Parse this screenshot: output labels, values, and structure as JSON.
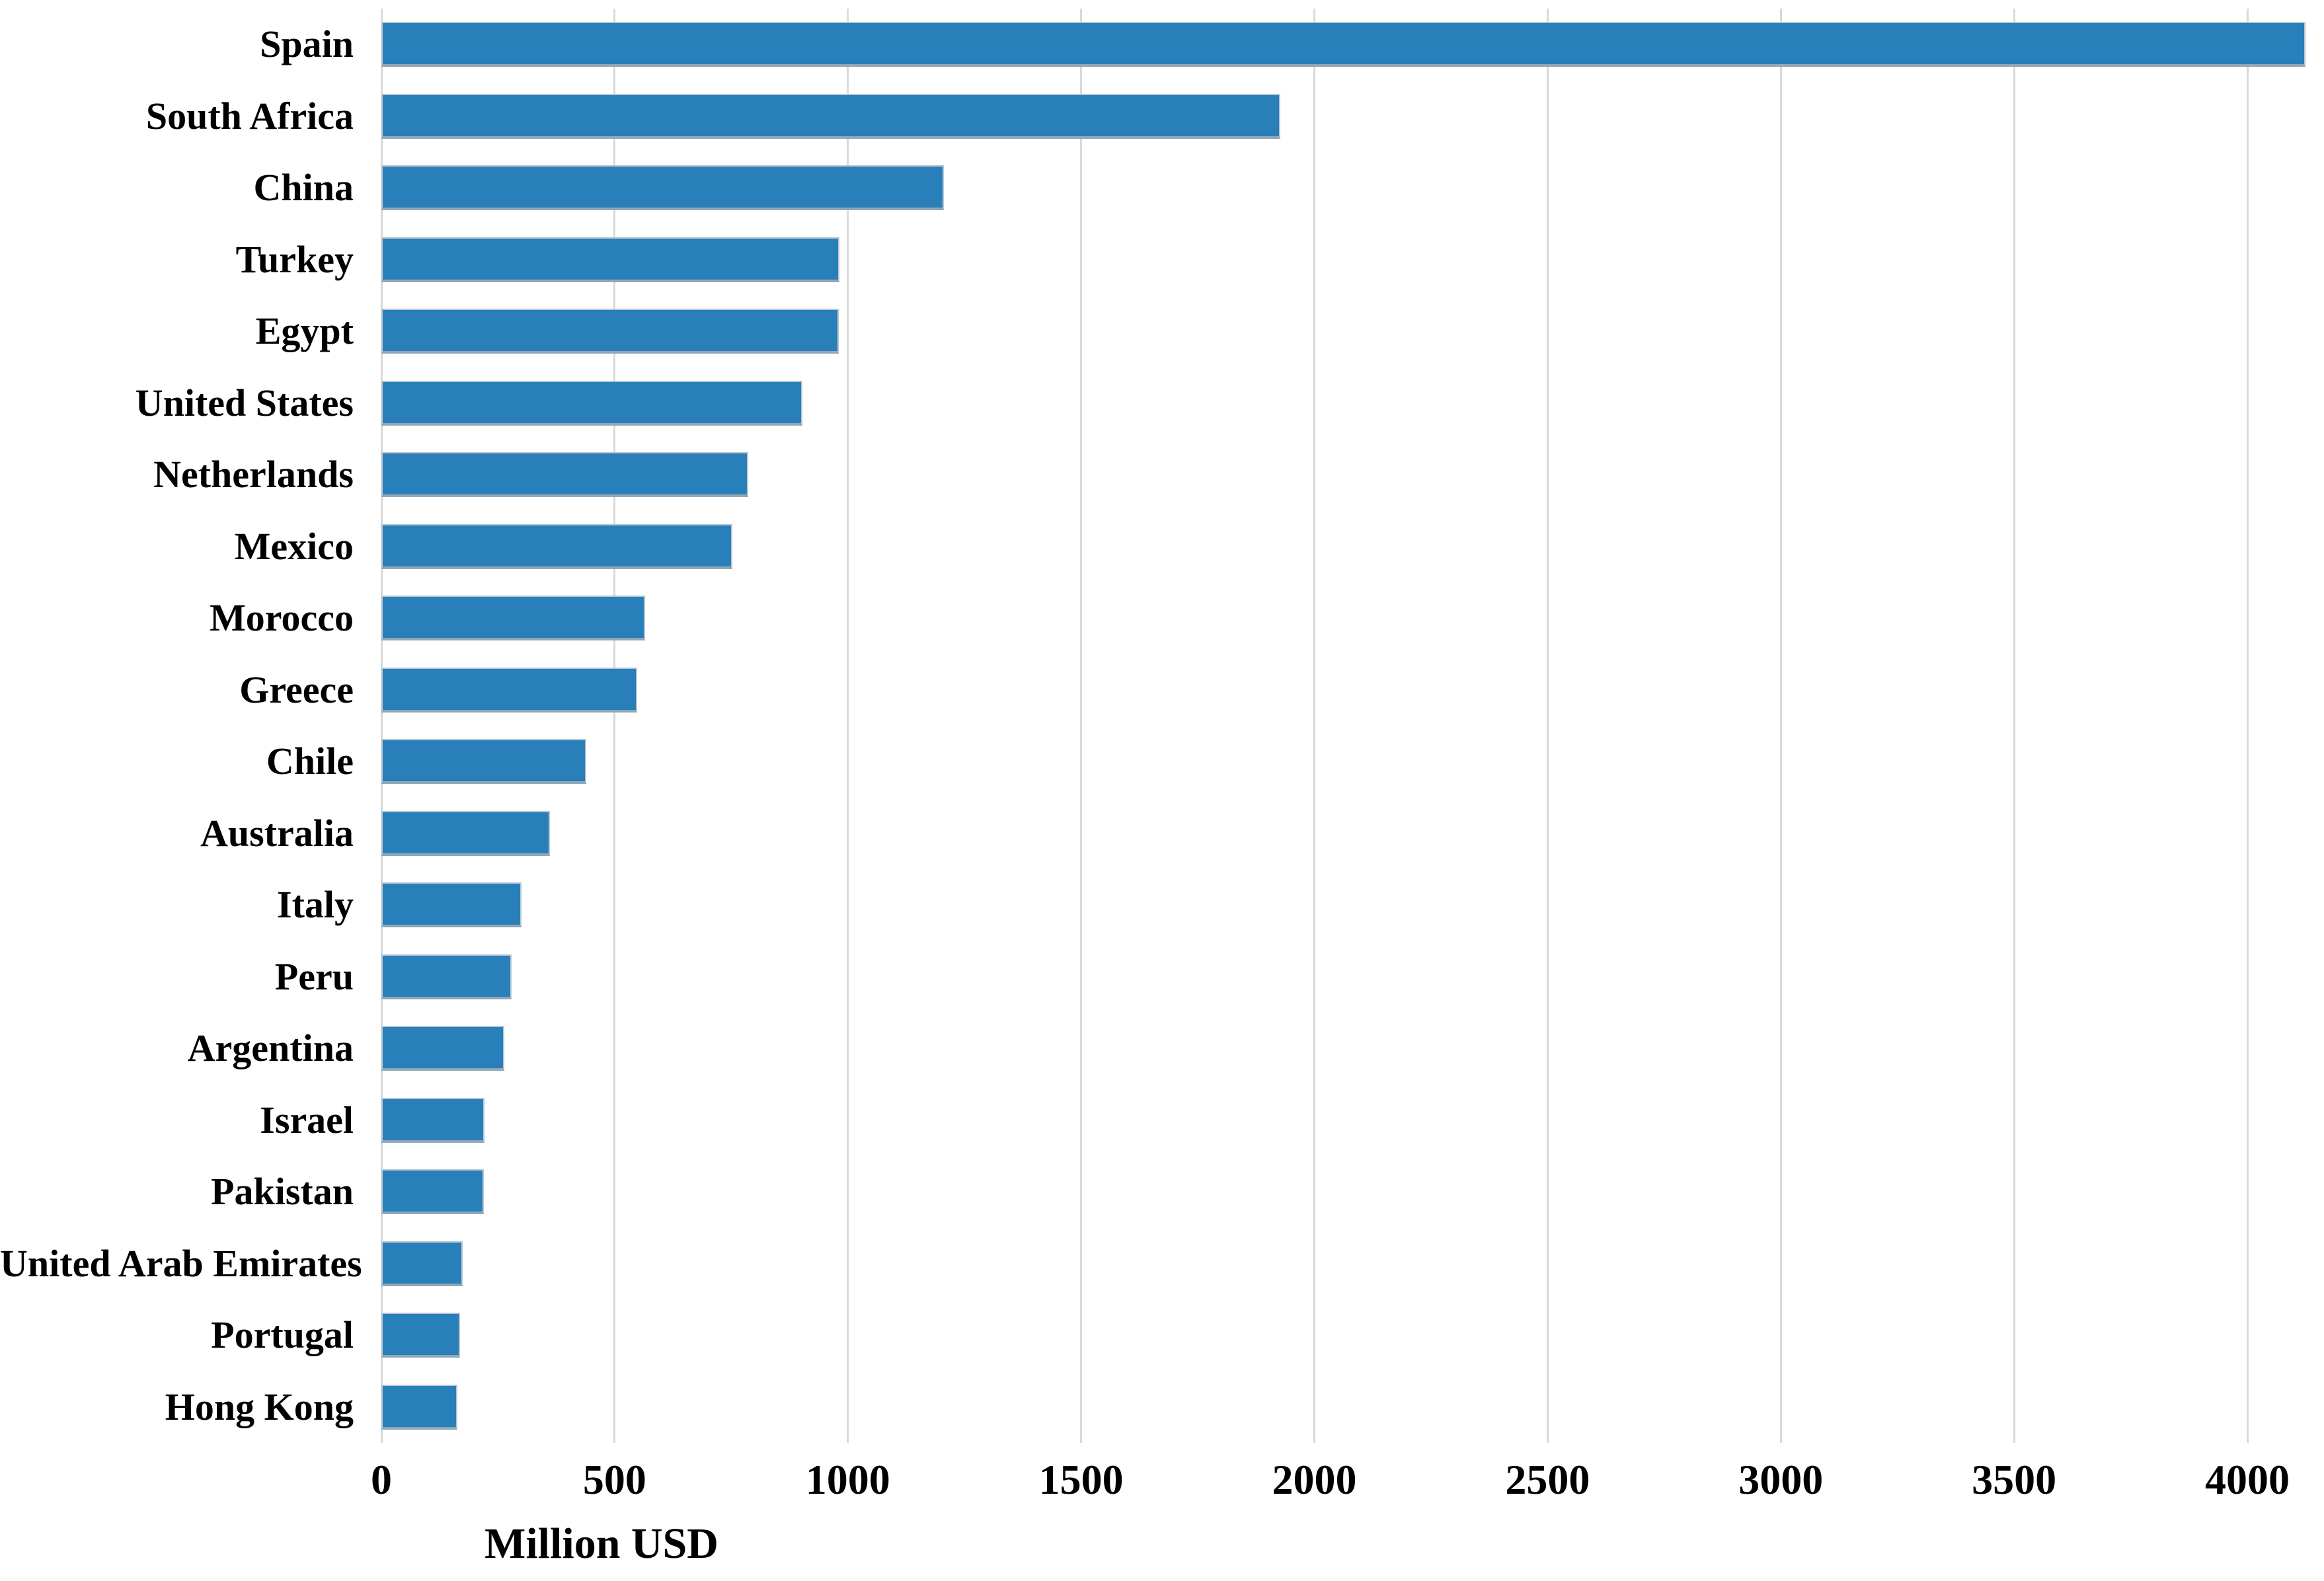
{
  "chart_data": {
    "type": "bar",
    "orientation": "horizontal",
    "title": "",
    "xlabel": "Million USD",
    "ylabel": "",
    "categories": [
      "Spain",
      "South Africa",
      "China",
      "Turkey",
      "Egypt",
      "United States",
      "Netherlands",
      "Mexico",
      "Morocco",
      "Greece",
      "Chile",
      "Australia",
      "Italy",
      "Peru",
      "Argentina",
      "Israel",
      "Pakistan",
      "United Arab Emirates",
      "Portugal",
      "Hong Kong"
    ],
    "values": [
      4125,
      1927,
      1206,
      982,
      980,
      903,
      786,
      752,
      565,
      548,
      439,
      362,
      300,
      279,
      264,
      221,
      220,
      174,
      169,
      163
    ],
    "xticks": [
      0,
      500,
      1000,
      1500,
      2000,
      2500,
      3000,
      3500,
      4000
    ],
    "xlim": [
      0,
      4140
    ],
    "grid": "vertical-gridlines-behind-bars",
    "legend": "none",
    "bar_color": "#287fb9",
    "gridline_color": "#d9d9d9",
    "text_color": "#000000",
    "background_color": "#ffffff"
  }
}
